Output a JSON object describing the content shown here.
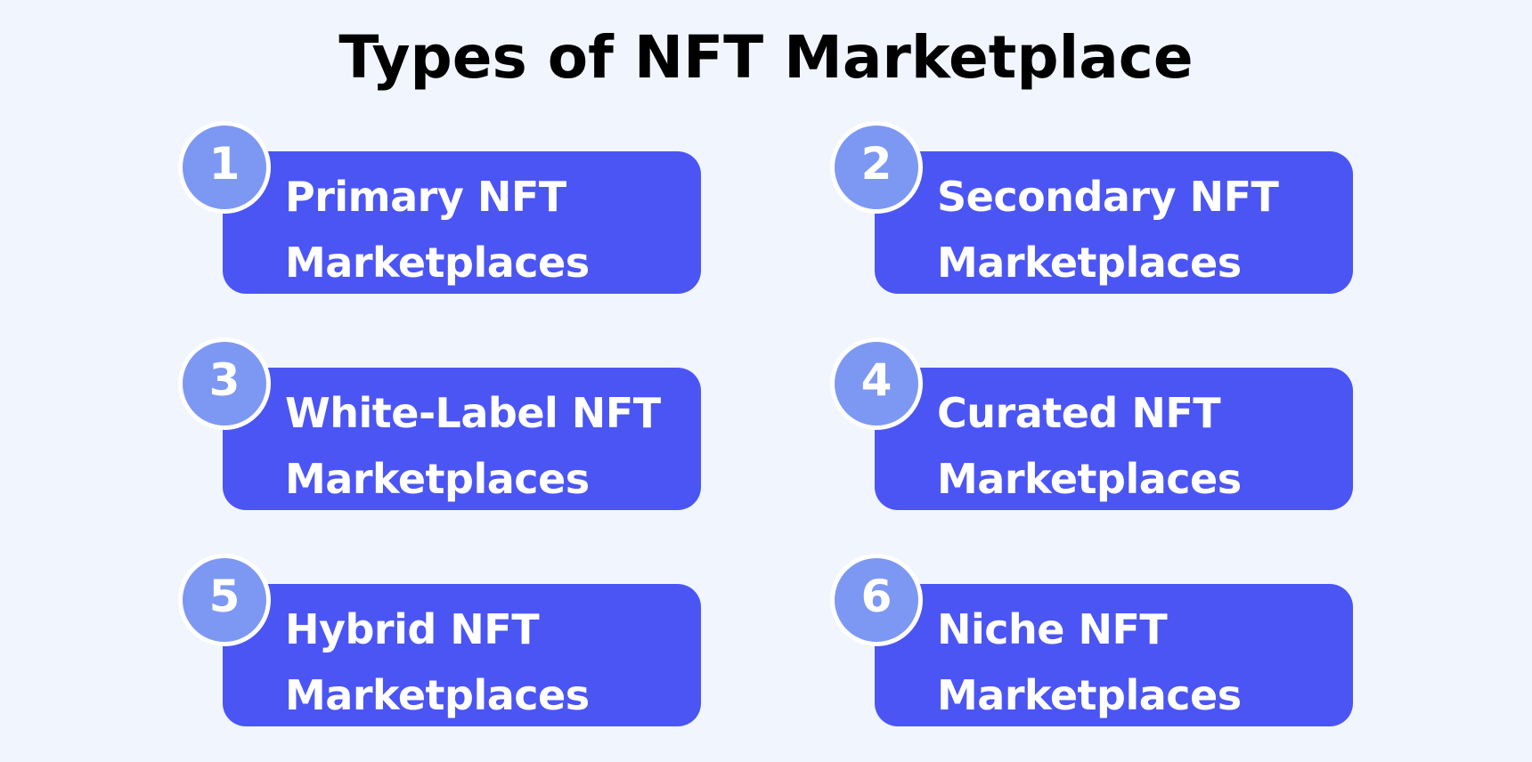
{
  "title": "Types of NFT Marketplace",
  "colors": {
    "background": "#f1f5fd",
    "card": "#4b55f4",
    "badge": "#7d98f3",
    "badge_border": "#ffffff",
    "card_text": "#ffffff",
    "title_text": "#000000"
  },
  "items": [
    {
      "number": "1",
      "line1": "Primary NFT",
      "line2": "Marketplaces"
    },
    {
      "number": "2",
      "line1": "Secondary NFT",
      "line2": "Marketplaces"
    },
    {
      "number": "3",
      "line1": "White-Label NFT",
      "line2": "Marketplaces"
    },
    {
      "number": "4",
      "line1": "Curated NFT",
      "line2": "Marketplaces"
    },
    {
      "number": "5",
      "line1": "Hybrid NFT",
      "line2": "Marketplaces"
    },
    {
      "number": "6",
      "line1": "Niche NFT",
      "line2": "Marketplaces"
    }
  ]
}
